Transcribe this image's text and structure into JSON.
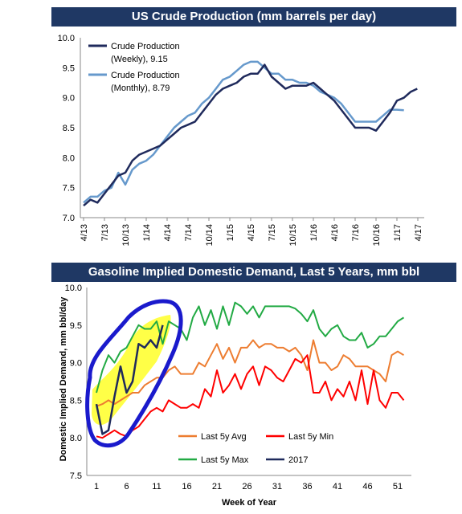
{
  "chart_data": [
    {
      "type": "line",
      "title": "US Crude Production (mm barrels per day)",
      "xlabel": "",
      "ylabel": "",
      "ylim": [
        7.0,
        10.0
      ],
      "yticks": [
        "10.0",
        "9.5",
        "9.0",
        "8.5",
        "8.0",
        "7.5",
        "7.0"
      ],
      "xtick_labels": [
        "4/13",
        "7/13",
        "10/13",
        "1/14",
        "4/14",
        "7/14",
        "10/14",
        "1/15",
        "4/15",
        "7/15",
        "10/15",
        "1/16",
        "4/16",
        "7/16",
        "10/16",
        "1/17",
        "4/17"
      ],
      "grid": false,
      "legend_position": "top-left",
      "series": [
        {
          "name": "Crude Production (Weekly), 9.15",
          "legend_line1": "Crude Production",
          "legend_line2": "(Weekly), 9.15",
          "color": "#1f2a5c",
          "points": [
            [
              "4/13",
              7.2
            ],
            [
              "5/13",
              7.3
            ],
            [
              "6/13",
              7.25
            ],
            [
              "7/13",
              7.4
            ],
            [
              "8/13",
              7.55
            ],
            [
              "9/13",
              7.7
            ],
            [
              "10/13",
              7.75
            ],
            [
              "11/13",
              7.95
            ],
            [
              "12/13",
              8.05
            ],
            [
              "1/14",
              8.1
            ],
            [
              "2/14",
              8.15
            ],
            [
              "3/14",
              8.2
            ],
            [
              "4/14",
              8.3
            ],
            [
              "5/14",
              8.4
            ],
            [
              "6/14",
              8.5
            ],
            [
              "7/14",
              8.55
            ],
            [
              "8/14",
              8.6
            ],
            [
              "9/14",
              8.75
            ],
            [
              "10/14",
              8.9
            ],
            [
              "11/14",
              9.05
            ],
            [
              "12/14",
              9.15
            ],
            [
              "1/15",
              9.2
            ],
            [
              "2/15",
              9.25
            ],
            [
              "3/15",
              9.35
            ],
            [
              "4/15",
              9.4
            ],
            [
              "5/15",
              9.4
            ],
            [
              "6/15",
              9.55
            ],
            [
              "7/15",
              9.35
            ],
            [
              "8/15",
              9.25
            ],
            [
              "9/15",
              9.15
            ],
            [
              "10/15",
              9.2
            ],
            [
              "11/15",
              9.2
            ],
            [
              "12/15",
              9.2
            ],
            [
              "1/16",
              9.25
            ],
            [
              "2/16",
              9.15
            ],
            [
              "3/16",
              9.05
            ],
            [
              "4/16",
              8.95
            ],
            [
              "5/16",
              8.8
            ],
            [
              "6/16",
              8.65
            ],
            [
              "7/16",
              8.5
            ],
            [
              "8/16",
              8.5
            ],
            [
              "9/16",
              8.5
            ],
            [
              "10/16",
              8.45
            ],
            [
              "11/16",
              8.6
            ],
            [
              "12/16",
              8.75
            ],
            [
              "1/17",
              8.95
            ],
            [
              "2/17",
              9.0
            ],
            [
              "3/17",
              9.1
            ],
            [
              "3/17",
              9.15
            ]
          ]
        },
        {
          "name": "Crude Production (Monthly), 8.79",
          "legend_line1": "Crude Production",
          "legend_line2": "(Monthly), 8.79",
          "color": "#6699cc",
          "points": [
            [
              "4/13",
              7.25
            ],
            [
              "5/13",
              7.35
            ],
            [
              "6/13",
              7.35
            ],
            [
              "7/13",
              7.45
            ],
            [
              "8/13",
              7.5
            ],
            [
              "9/13",
              7.75
            ],
            [
              "10/13",
              7.55
            ],
            [
              "11/13",
              7.8
            ],
            [
              "12/13",
              7.9
            ],
            [
              "1/14",
              7.95
            ],
            [
              "2/14",
              8.05
            ],
            [
              "3/14",
              8.2
            ],
            [
              "4/14",
              8.35
            ],
            [
              "5/14",
              8.5
            ],
            [
              "6/14",
              8.6
            ],
            [
              "7/14",
              8.7
            ],
            [
              "8/14",
              8.75
            ],
            [
              "9/14",
              8.9
            ],
            [
              "10/14",
              9.0
            ],
            [
              "11/14",
              9.15
            ],
            [
              "12/14",
              9.3
            ],
            [
              "1/15",
              9.35
            ],
            [
              "2/15",
              9.45
            ],
            [
              "3/15",
              9.55
            ],
            [
              "4/15",
              9.6
            ],
            [
              "5/15",
              9.6
            ],
            [
              "6/15",
              9.5
            ],
            [
              "7/15",
              9.4
            ],
            [
              "8/15",
              9.4
            ],
            [
              "9/15",
              9.3
            ],
            [
              "10/15",
              9.3
            ],
            [
              "11/15",
              9.25
            ],
            [
              "12/15",
              9.25
            ],
            [
              "1/16",
              9.2
            ],
            [
              "2/16",
              9.1
            ],
            [
              "3/16",
              9.05
            ],
            [
              "4/16",
              9.0
            ],
            [
              "5/16",
              8.9
            ],
            [
              "6/16",
              8.75
            ],
            [
              "7/16",
              8.6
            ],
            [
              "8/16",
              8.6
            ],
            [
              "9/16",
              8.6
            ],
            [
              "10/16",
              8.6
            ],
            [
              "11/16",
              8.7
            ],
            [
              "12/16",
              8.8
            ],
            [
              "1/17",
              8.8
            ],
            [
              "2/17",
              8.79
            ]
          ]
        }
      ]
    },
    {
      "type": "line",
      "title": "Gasoline Implied Domestic Demand, Last 5 Years, mm bbl",
      "xlabel": "Week of Year",
      "ylabel": "Domestic Implied Demand, mm bbl/day",
      "ylim": [
        7.5,
        10.0
      ],
      "xlim": [
        1,
        53
      ],
      "yticks": [
        "10.0",
        "9.5",
        "9.0",
        "8.5",
        "8.0",
        "7.5"
      ],
      "xticks": [
        1,
        6,
        11,
        16,
        21,
        26,
        31,
        36,
        41,
        46,
        51
      ],
      "grid": false,
      "legend_position": "bottom-center",
      "series": [
        {
          "name": "Last 5y Avg",
          "color": "#ed7d31",
          "values": [
            8.42,
            8.45,
            8.5,
            8.45,
            8.5,
            8.55,
            8.6,
            8.6,
            8.7,
            8.75,
            8.8,
            8.8,
            8.9,
            8.95,
            8.85,
            8.85,
            8.85,
            9.0,
            8.95,
            9.1,
            9.25,
            9.05,
            9.2,
            9.0,
            9.2,
            9.2,
            9.3,
            9.2,
            9.25,
            9.25,
            9.2,
            9.2,
            9.15,
            9.2,
            9.1,
            8.9,
            9.3,
            9.0,
            9.0,
            8.9,
            8.95,
            9.1,
            9.05,
            8.95,
            8.95,
            8.95,
            8.9,
            8.85,
            8.75,
            9.1,
            9.15,
            9.1
          ]
        },
        {
          "name": "Last 5y Min",
          "color": "#ff0000",
          "values": [
            8.02,
            8.0,
            8.05,
            8.1,
            8.05,
            8.02,
            8.1,
            8.15,
            8.25,
            8.35,
            8.4,
            8.35,
            8.5,
            8.45,
            8.4,
            8.4,
            8.45,
            8.4,
            8.65,
            8.55,
            8.9,
            8.6,
            8.7,
            8.85,
            8.65,
            8.85,
            8.95,
            8.7,
            8.95,
            8.9,
            8.8,
            8.75,
            8.9,
            9.05,
            9.0,
            9.1,
            8.6,
            8.6,
            8.75,
            8.5,
            8.65,
            8.55,
            8.75,
            8.5,
            8.9,
            8.45,
            8.9,
            8.5,
            8.4,
            8.6,
            8.6,
            8.5
          ]
        },
        {
          "name": "Last 5y Max",
          "color": "#22aa44",
          "values": [
            8.6,
            8.9,
            9.1,
            9.0,
            9.15,
            9.2,
            9.35,
            9.5,
            9.45,
            9.45,
            9.55,
            9.25,
            9.55,
            9.5,
            9.45,
            9.3,
            9.6,
            9.75,
            9.5,
            9.7,
            9.45,
            9.75,
            9.5,
            9.8,
            9.75,
            9.65,
            9.75,
            9.6,
            9.75,
            9.75,
            9.75,
            9.75,
            9.75,
            9.72,
            9.65,
            9.55,
            9.7,
            9.45,
            9.35,
            9.45,
            9.5,
            9.35,
            9.3,
            9.3,
            9.4,
            9.2,
            9.25,
            9.35,
            9.35,
            9.45,
            9.55,
            9.6
          ]
        },
        {
          "name": "2017",
          "color": "#1f2a5c",
          "values": [
            8.45,
            8.05,
            8.1,
            8.55,
            8.95,
            8.6,
            8.75,
            9.25,
            9.2,
            9.3,
            9.2,
            9.5
          ]
        }
      ]
    }
  ]
}
